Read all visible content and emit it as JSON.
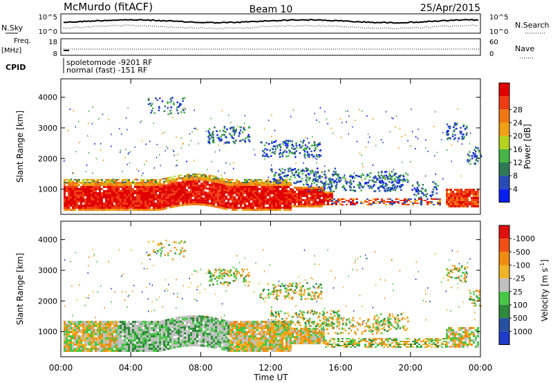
{
  "header": {
    "station": "McMurdo (fitACF)",
    "beam": "Beam 10",
    "date": "25/Apr/2015"
  },
  "top_panels": {
    "nsky_label": "N.Sky",
    "nsearch_label": "N.Search",
    "noise_ticks_left": [
      "10^5",
      "10^0"
    ],
    "noise_ticks_right": [
      "10^5",
      "10^0"
    ],
    "freq_label": "Freq.",
    "freq_unit": "[MHz]",
    "freq_ticks": [
      "18",
      "8"
    ],
    "nave_label": "Nave",
    "nave_ticks": [
      "60",
      "0"
    ],
    "cpid_label": "CPID",
    "cpid_lines": [
      "spoletomode -9201 RF",
      "normal (fast) -151 RF"
    ]
  },
  "chart_data": [
    {
      "type": "heatmap",
      "title": "",
      "xlabel": "Time UT",
      "ylabel": "Slant Range [km]",
      "x_ticks": [
        "00:00",
        "04:00",
        "08:00",
        "12:00",
        "16:00",
        "20:00",
        "00:00"
      ],
      "y_ticks": [
        "1000",
        "2000",
        "3000",
        "4000"
      ],
      "ylim": [
        180,
        4600
      ],
      "colorbar": {
        "label": "Power [dB]",
        "ticks": [
          "4",
          "8",
          "12",
          "16",
          "20",
          "24",
          "28"
        ],
        "colors": [
          "#0a1ef0",
          "#2a4ab8",
          "#2f7a55",
          "#46b446",
          "#b4d21e",
          "#f0a014",
          "#f07814",
          "#f03c14",
          "#e00000"
        ]
      }
    },
    {
      "type": "heatmap",
      "title": "",
      "xlabel": "Time UT",
      "ylabel": "Slant Range [km]",
      "x_ticks": [
        "00:00",
        "04:00",
        "08:00",
        "12:00",
        "16:00",
        "20:00",
        "00:00"
      ],
      "y_ticks": [
        "1000",
        "2000",
        "3000",
        "4000"
      ],
      "ylim": [
        180,
        4600
      ],
      "colorbar": {
        "label": "Velocity [m s",
        "label_sup": "-1",
        "label_close": "]",
        "ticks": [
          "1000",
          "500",
          "100",
          "25",
          "-25",
          "-100",
          "-500",
          "-1000"
        ],
        "colors": [
          "#1e3cc8",
          "#2850a0",
          "#2f8a3c",
          "#46c846",
          "#c0c0c0",
          "#f0b428",
          "#f08c14",
          "#f05014",
          "#e01010"
        ]
      }
    }
  ],
  "colors": {
    "frame": "#000000",
    "background": "#ffffff"
  }
}
